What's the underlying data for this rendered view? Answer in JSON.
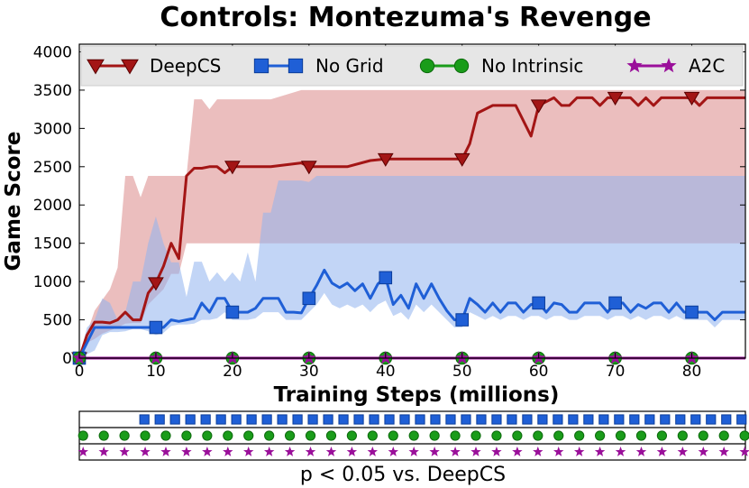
{
  "chart_data": {
    "type": "line",
    "title": "Controls: Montezuma's Revenge",
    "xlabel": "Training Steps (millions)",
    "ylabel": "Game Score",
    "xlim": [
      0,
      87
    ],
    "ylim": [
      0,
      4100
    ],
    "x_ticks": [
      0,
      10,
      20,
      30,
      40,
      50,
      60,
      70,
      80
    ],
    "y_ticks": [
      0,
      500,
      1000,
      1500,
      2000,
      2500,
      3000,
      3500,
      4000
    ],
    "grid": false,
    "legend_position": "top",
    "series": [
      {
        "name": "DeepCS",
        "color": "#a31515",
        "marker": "triangle-down",
        "x": [
          0,
          1,
          2,
          3,
          4,
          5,
          6,
          7,
          8,
          9,
          10,
          11,
          12,
          13,
          14,
          15,
          16,
          17,
          18,
          19,
          20,
          25,
          29,
          30,
          35,
          38,
          40,
          45,
          49,
          50,
          51,
          52,
          53,
          54,
          55,
          56,
          57,
          58,
          59,
          60,
          61,
          62,
          63,
          64,
          65,
          66,
          67,
          68,
          69,
          70,
          71,
          72,
          73,
          74,
          75,
          76,
          77,
          78,
          79,
          80,
          81,
          82,
          83,
          84,
          85,
          86,
          87
        ],
        "y": [
          0,
          300,
          470,
          470,
          460,
          500,
          600,
          500,
          500,
          850,
          980,
          1200,
          1500,
          1300,
          2380,
          2480,
          2480,
          2500,
          2500,
          2420,
          2500,
          2500,
          2550,
          2500,
          2500,
          2580,
          2600,
          2600,
          2600,
          2600,
          2800,
          3200,
          3250,
          3300,
          3300,
          3300,
          3300,
          3100,
          2900,
          3300,
          3350,
          3400,
          3300,
          3300,
          3400,
          3400,
          3400,
          3300,
          3400,
          3400,
          3400,
          3400,
          3300,
          3400,
          3300,
          3400,
          3400,
          3400,
          3400,
          3400,
          3300,
          3400,
          3400,
          3400,
          3400,
          3400,
          3400
        ],
        "upper": [
          0,
          330,
          620,
          760,
          900,
          1180,
          2380,
          2380,
          2100,
          2380,
          2380,
          2380,
          2380,
          2380,
          2380,
          3380,
          3380,
          3250,
          3380,
          3380,
          3380,
          3380,
          3500,
          3500,
          3500,
          3500,
          3500,
          3500,
          3500,
          3500,
          3500,
          3500,
          3500,
          3500,
          3500,
          3500,
          3500,
          3500,
          3500,
          3500,
          3500,
          3500,
          3500,
          3500,
          3500,
          3500,
          3500,
          3500,
          3500,
          3500,
          3500,
          3500,
          3500,
          3500,
          3500,
          3500,
          3500,
          3500,
          3500,
          3500,
          3500,
          3500,
          3500,
          3500,
          3500,
          3500,
          3500
        ],
        "lower": [
          0,
          200,
          250,
          320,
          360,
          400,
          450,
          460,
          460,
          700,
          800,
          900,
          1100,
          1100,
          1500,
          1500,
          1500,
          1500,
          1500,
          1500,
          1500,
          1500,
          1500,
          1500,
          1500,
          1500,
          1500,
          1500,
          1500,
          1500,
          1500,
          1500,
          1500,
          1500,
          1500,
          1500,
          1500,
          1500,
          1500,
          1500,
          1500,
          1500,
          1500,
          1500,
          1500,
          1500,
          1500,
          1500,
          1500,
          1500,
          1500,
          1500,
          1500,
          1500,
          1500,
          1500,
          1500,
          1500,
          1500,
          1500,
          1500,
          1500,
          1500,
          1500,
          1500,
          1500,
          1500
        ]
      },
      {
        "name": "No Grid",
        "color": "#1f5fd6",
        "marker": "square",
        "x": [
          0,
          1,
          2,
          3,
          4,
          5,
          6,
          7,
          8,
          9,
          10,
          11,
          12,
          13,
          14,
          15,
          16,
          17,
          18,
          19,
          20,
          21,
          22,
          23,
          24,
          25,
          26,
          27,
          28,
          29,
          30,
          31,
          32,
          33,
          34,
          35,
          36,
          37,
          38,
          39,
          40,
          41,
          42,
          43,
          44,
          45,
          46,
          47,
          48,
          49,
          50,
          51,
          52,
          53,
          54,
          55,
          56,
          57,
          58,
          59,
          60,
          61,
          62,
          63,
          64,
          65,
          66,
          67,
          68,
          69,
          70,
          71,
          72,
          73,
          74,
          75,
          76,
          77,
          78,
          79,
          80,
          81,
          82,
          83,
          84,
          85,
          86,
          87
        ],
        "y": [
          0,
          200,
          400,
          400,
          400,
          400,
          400,
          400,
          400,
          400,
          400,
          400,
          500,
          480,
          500,
          520,
          720,
          600,
          780,
          780,
          600,
          600,
          600,
          650,
          780,
          780,
          780,
          600,
          600,
          590,
          780,
          950,
          1150,
          980,
          920,
          980,
          880,
          970,
          780,
          970,
          1050,
          700,
          820,
          650,
          970,
          780,
          970,
          780,
          620,
          500,
          500,
          780,
          700,
          600,
          720,
          600,
          720,
          720,
          600,
          700,
          720,
          600,
          720,
          700,
          600,
          600,
          720,
          720,
          720,
          600,
          720,
          720,
          600,
          700,
          650,
          720,
          720,
          600,
          720,
          600,
          600,
          600,
          600,
          500,
          600,
          600,
          600,
          600
        ],
        "upper": [
          0,
          400,
          500,
          780,
          720,
          500,
          600,
          1000,
          1000,
          1500,
          1850,
          1500,
          1250,
          1250,
          800,
          1260,
          1260,
          1000,
          1120,
          1000,
          1120,
          1000,
          1380,
          1000,
          1900,
          1900,
          2320,
          2320,
          2320,
          2320,
          2300,
          2380,
          2380,
          2380,
          2380,
          2380,
          2380,
          2380,
          2380,
          2380,
          2380,
          2380,
          2380,
          2380,
          2380,
          2380,
          2380,
          2380,
          2380,
          2380,
          2380,
          2380,
          2380,
          2380,
          2380,
          2380,
          2380,
          2380,
          2380,
          2380,
          2380,
          2380,
          2380,
          2380,
          2380,
          2380,
          2380,
          2380,
          2380,
          2380,
          2380,
          2380,
          2380,
          2380,
          2380,
          2380,
          2380,
          2380,
          2380,
          2380,
          2380,
          2380,
          2380,
          2380,
          2380,
          2380,
          2380,
          2380
        ],
        "lower": [
          0,
          50,
          100,
          300,
          340,
          340,
          350,
          380,
          380,
          350,
          300,
          330,
          420,
          440,
          440,
          450,
          500,
          500,
          520,
          600,
          500,
          500,
          500,
          520,
          600,
          600,
          600,
          500,
          500,
          500,
          600,
          700,
          850,
          700,
          650,
          700,
          650,
          700,
          600,
          700,
          750,
          550,
          600,
          500,
          700,
          600,
          700,
          600,
          500,
          400,
          400,
          600,
          550,
          500,
          550,
          500,
          550,
          550,
          500,
          550,
          550,
          500,
          550,
          550,
          500,
          500,
          550,
          550,
          550,
          500,
          550,
          550,
          500,
          550,
          500,
          550,
          550,
          500,
          550,
          500,
          500,
          500,
          500,
          400,
          500,
          500,
          500,
          500
        ]
      },
      {
        "name": "No Intrinsic",
        "color": "#1a9c1a",
        "marker": "circle",
        "x": [
          0,
          87
        ],
        "y": [
          0,
          0
        ]
      },
      {
        "name": "A2C",
        "color": "#9a0f9a",
        "marker": "star",
        "x": [
          0,
          87
        ],
        "y": [
          0,
          0
        ]
      }
    ],
    "significance_rows": {
      "label": "p < 0.05 vs. DeepCS",
      "rows": [
        {
          "series": "No Grid",
          "marker": "square",
          "color": "#1f5fd6",
          "x_start": 8.5,
          "x_step": 2.0
        },
        {
          "series": "No Intrinsic",
          "marker": "circle",
          "color": "#1a9c1a",
          "x_start": 0.5,
          "x_step": 2.7
        },
        {
          "series": "A2C",
          "marker": "star",
          "color": "#9a0f9a",
          "x_start": 0.5,
          "x_step": 2.7
        }
      ]
    }
  }
}
